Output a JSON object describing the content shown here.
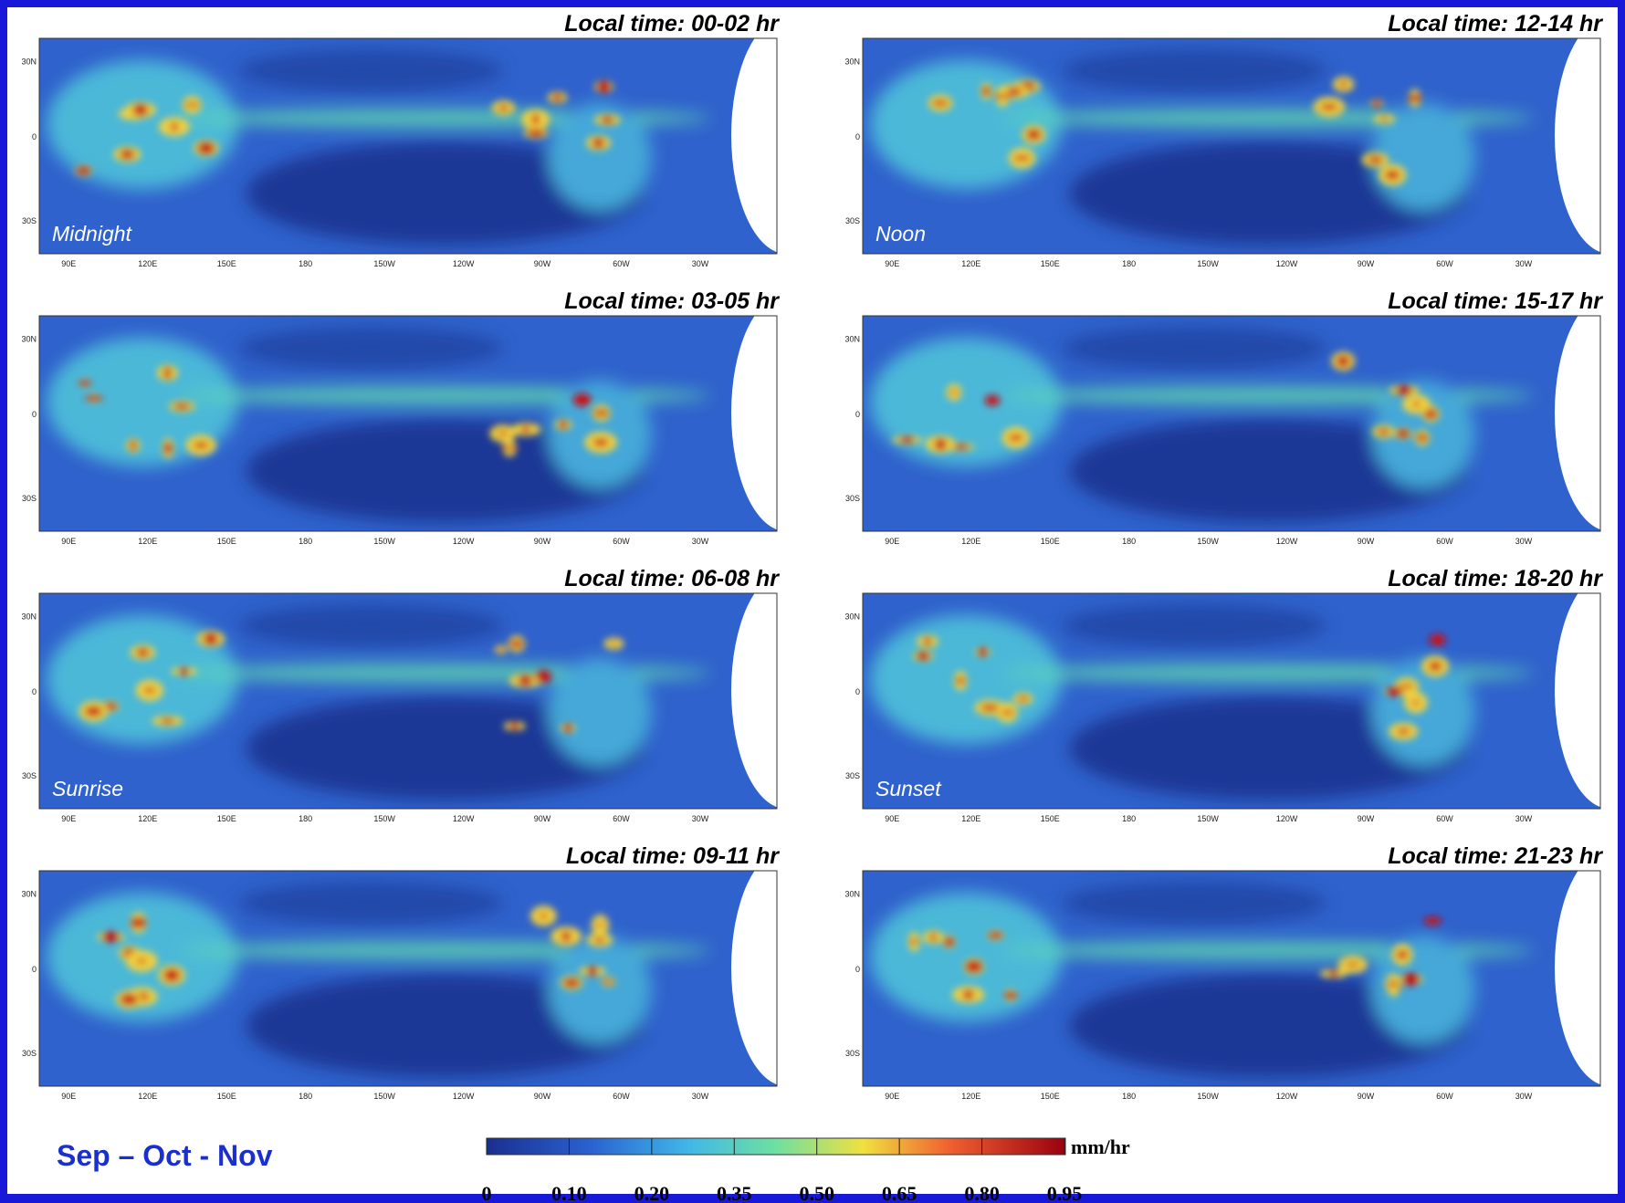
{
  "season": "Sep – Oct - Nov",
  "lat_labels": [
    "30N",
    "0",
    "30S"
  ],
  "lon_labels": [
    "90E",
    "120E",
    "150E",
    "180",
    "150W",
    "120W",
    "90W",
    "60W",
    "30W"
  ],
  "panels": [
    {
      "title": "Local time: 00-02 hr",
      "label": "Midnight"
    },
    {
      "title": "Local time: 03-05 hr"
    },
    {
      "title": "Local time: 06-08 hr",
      "label": "Sunrise"
    },
    {
      "title": "Local time: 09-11 hr"
    },
    {
      "title": "Local time: 12-14 hr",
      "label": "Noon"
    },
    {
      "title": "Local time: 15-17 hr"
    },
    {
      "title": "Local time: 18-20 hr",
      "label": "Sunset"
    },
    {
      "title": "Local time: 21-23 hr"
    }
  ],
  "colorbar": {
    "unit": "mm/hr",
    "ticks": [
      "0",
      "0.10",
      "0.20",
      "0.35",
      "0.50",
      "0.65",
      "0.80",
      "0.95"
    ]
  }
}
